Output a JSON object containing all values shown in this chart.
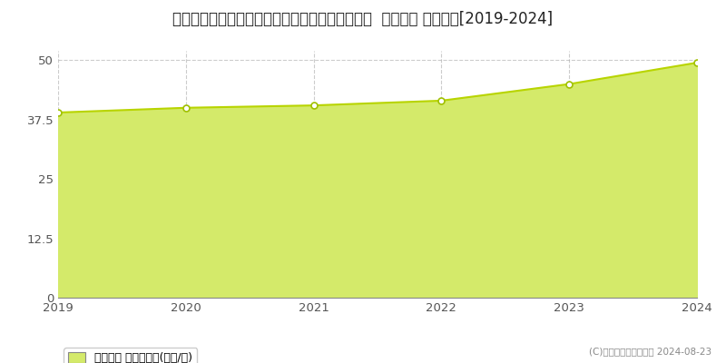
{
  "title": "兵庫県明石市大久保町ゆりのき通２丁目１５番１  地価公示 地価推移[2019-2024]",
  "years": [
    2019,
    2020,
    2021,
    2022,
    2023,
    2024
  ],
  "values": [
    39.0,
    40.0,
    40.5,
    41.5,
    45.0,
    49.5
  ],
  "line_color": "#b8d400",
  "fill_color": "#d4ea6a",
  "fill_alpha": 1.0,
  "marker_color": "white",
  "marker_edge_color": "#a0c000",
  "ylim": [
    0,
    52
  ],
  "yticks": [
    0,
    12.5,
    25,
    37.5,
    50
  ],
  "background_color": "#ffffff",
  "grid_color": "#aaaaaa",
  "title_fontsize": 12,
  "legend_label": "地価公示 平均坪単価(万円/坪)",
  "watermark": "(C)土地価格ドットコム 2024-08-23"
}
